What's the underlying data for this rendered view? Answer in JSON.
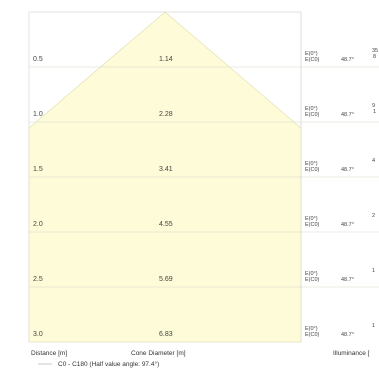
{
  "chart_data": {
    "type": "cone diagram",
    "half_value_angle_label": "C0 - C180 (Half value angle: 97.4°)",
    "x_label": "Cone Diameter [m]",
    "y_label": "Distance [m]",
    "right_label": "Illuminance [",
    "rows": [
      {
        "distance": "0.5",
        "diameter": "1.14",
        "e0": "E(0°)",
        "ec0": "E(C0)",
        "angle": "48.7°",
        "extra_top": "35",
        "extra_bottom": "8"
      },
      {
        "distance": "1.0",
        "diameter": "2.28",
        "e0": "E(0°)",
        "ec0": "E(C0)",
        "angle": "48.7°",
        "extra_top": "9",
        "extra_bottom": "1"
      },
      {
        "distance": "1.5",
        "diameter": "3.41",
        "e0": "E(0°)",
        "ec0": "E(C0)",
        "angle": "48.7°",
        "extra_top": "4",
        "extra_bottom": ""
      },
      {
        "distance": "2.0",
        "diameter": "4.55",
        "e0": "E(0°)",
        "ec0": "E(C0)",
        "angle": "48.7°",
        "extra_top": "2",
        "extra_bottom": ""
      },
      {
        "distance": "2.5",
        "diameter": "5.69",
        "e0": "E(0°)",
        "ec0": "E(C0)",
        "angle": "48.7°",
        "extra_top": "1",
        "extra_bottom": ""
      },
      {
        "distance": "3.0",
        "diameter": "6.83",
        "e0": "E(0°)",
        "ec0": "E(C0)",
        "angle": "48.7°",
        "extra_top": "1",
        "extra_bottom": ""
      }
    ]
  }
}
